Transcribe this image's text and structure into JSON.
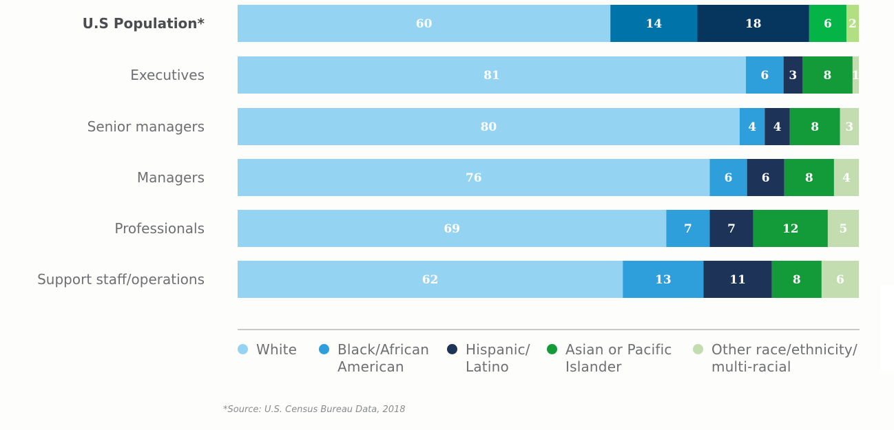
{
  "chart_data": {
    "type": "bar",
    "orientation": "horizontal",
    "stacked": true,
    "categories": [
      "U.S Population*",
      "Executives",
      "Senior managers",
      "Managers",
      "Professionals",
      "Support staff/operations"
    ],
    "series": [
      {
        "name": "White",
        "color": "#95d3f2",
        "values": [
          60,
          81,
          80,
          76,
          69,
          62
        ]
      },
      {
        "name": "Black/African American",
        "color": "#2f9fdc",
        "values": [
          14,
          6,
          4,
          6,
          7,
          13
        ]
      },
      {
        "name": "Hispanic/ Latino",
        "color": "#1d3458",
        "values": [
          18,
          3,
          4,
          6,
          7,
          11
        ]
      },
      {
        "name": "Asian or Pacific Islander",
        "color": "#139b3a",
        "values": [
          6,
          8,
          8,
          8,
          12,
          8
        ]
      },
      {
        "name": "Other race/ethnicity/ multi-racial",
        "color": "#c3dcb0",
        "values": [
          2,
          1,
          3,
          4,
          5,
          6
        ]
      }
    ],
    "row_totals": [
      100,
      99,
      99,
      100,
      100,
      100
    ],
    "first_row_colors": [
      "#95d3f2",
      "#0074a8",
      "#06365e",
      "#05b446",
      "#b1df82"
    ],
    "bold_categories": [
      0
    ],
    "grid": false,
    "legend_position": "bottom"
  },
  "legend": [
    {
      "label": "White",
      "color": "#95d3f2"
    },
    {
      "label": "Black/African\nAmerican",
      "color": "#2f9fdc"
    },
    {
      "label": "Hispanic/\nLatino",
      "color": "#1d3458"
    },
    {
      "label": "Asian or Pacific\nIslander",
      "color": "#139b3a"
    },
    {
      "label": "Other race/ethnicity/\nmulti-racial",
      "color": "#c3dcb0"
    }
  ],
  "source": "*Source: U.S. Census Bureau Data, 2018"
}
